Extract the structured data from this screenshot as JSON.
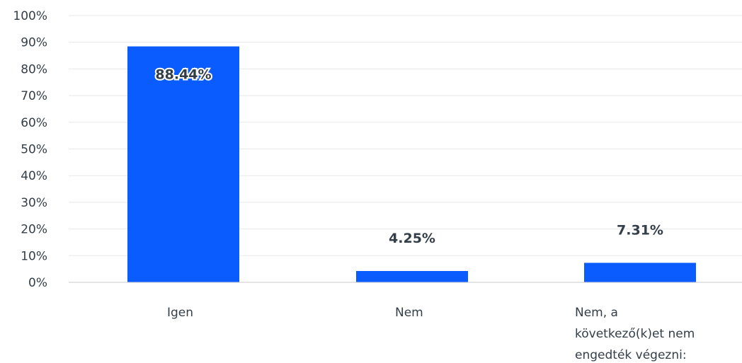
{
  "chart_data": {
    "type": "bar",
    "categories": [
      [
        "Igen"
      ],
      [
        "Nem"
      ],
      [
        "Nem, a",
        "következő(k)et nem",
        "engedték végezni:"
      ]
    ],
    "values": [
      88.44,
      4.25,
      7.31
    ],
    "value_labels": [
      "88.44%",
      "4.25%",
      "7.31%"
    ],
    "ylim": [
      0,
      100
    ],
    "yticks": [
      0,
      10,
      20,
      30,
      40,
      50,
      60,
      70,
      80,
      90,
      100
    ],
    "ytick_labels": [
      "0%",
      "10%",
      "20%",
      "30%",
      "40%",
      "50%",
      "60%",
      "70%",
      "80%",
      "90%",
      "100%"
    ],
    "grid": true,
    "bar_color": "#0a5cff",
    "grid_color": "#e8e8e8",
    "axis_color": "#c9c9c9",
    "text_color": "#333e48"
  }
}
